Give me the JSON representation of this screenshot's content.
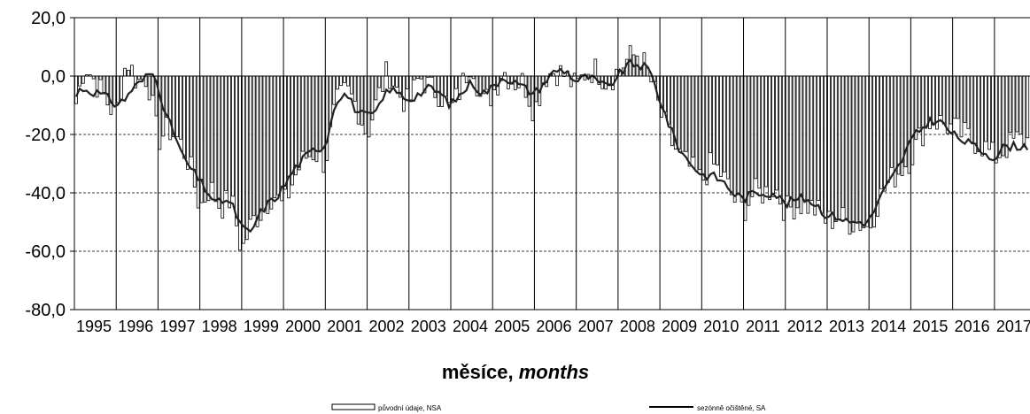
{
  "chart_data": {
    "type": "bar",
    "xlabel": "měsíce,",
    "xlabel_italic": "months",
    "ylim": [
      -80,
      20
    ],
    "yticks": [
      "20,0",
      "0,0",
      "-20,0",
      "-40,0",
      "-60,0",
      "-80,0"
    ],
    "ytick_values": [
      20,
      0,
      -20,
      -40,
      -60,
      -80
    ],
    "gridlines_dashed_at": [
      -20,
      -40,
      -60
    ],
    "years": [
      "1995",
      "1996",
      "1997",
      "1998",
      "1999",
      "2000",
      "2001",
      "2002",
      "2003",
      "2004",
      "2005",
      "2006",
      "2007",
      "2008",
      "2009",
      "2010",
      "2011",
      "2012",
      "2013",
      "2014",
      "2015",
      "2016",
      "2017"
    ],
    "legend_position": "bottom",
    "series": [
      {
        "name": "původní údaje, NSA",
        "kind": "bar",
        "anchors": [
          [
            1995.0,
            -12
          ],
          [
            1995.25,
            4
          ],
          [
            1995.5,
            -2
          ],
          [
            1995.75,
            -8
          ],
          [
            1996.0,
            -14
          ],
          [
            1996.25,
            6
          ],
          [
            1996.5,
            -2
          ],
          [
            1996.75,
            0
          ],
          [
            1997.0,
            -22
          ],
          [
            1997.25,
            -18
          ],
          [
            1997.5,
            -22
          ],
          [
            1997.75,
            -30
          ],
          [
            1998.0,
            -45
          ],
          [
            1998.25,
            -38
          ],
          [
            1998.5,
            -45
          ],
          [
            1998.75,
            -42
          ],
          [
            1999.0,
            -60
          ],
          [
            1999.25,
            -50
          ],
          [
            1999.5,
            -46
          ],
          [
            1999.75,
            -40
          ],
          [
            2000.0,
            -45
          ],
          [
            2000.25,
            -35
          ],
          [
            2000.5,
            -28
          ],
          [
            2000.75,
            -26
          ],
          [
            2001.0,
            -30
          ],
          [
            2001.25,
            -10
          ],
          [
            2001.5,
            -5
          ],
          [
            2001.75,
            -10
          ],
          [
            2002.0,
            -20
          ],
          [
            2002.25,
            -8
          ],
          [
            2002.5,
            2
          ],
          [
            2002.75,
            -6
          ],
          [
            2003.0,
            -10
          ],
          [
            2003.25,
            0
          ],
          [
            2003.5,
            -4
          ],
          [
            2003.75,
            -6
          ],
          [
            2004.0,
            -12
          ],
          [
            2004.25,
            -4
          ],
          [
            2004.5,
            6
          ],
          [
            2004.75,
            -10
          ],
          [
            2005.0,
            -6
          ],
          [
            2005.25,
            2
          ],
          [
            2005.5,
            -2
          ],
          [
            2005.75,
            -2
          ],
          [
            2006.0,
            -12
          ],
          [
            2006.25,
            0
          ],
          [
            2006.5,
            2
          ],
          [
            2006.75,
            0
          ],
          [
            2007.0,
            -4
          ],
          [
            2007.25,
            2
          ],
          [
            2007.5,
            2
          ],
          [
            2007.75,
            -2
          ],
          [
            2008.0,
            2
          ],
          [
            2008.25,
            6
          ],
          [
            2008.5,
            8
          ],
          [
            2008.75,
            0
          ],
          [
            2009.0,
            -12
          ],
          [
            2009.25,
            -22
          ],
          [
            2009.5,
            -28
          ],
          [
            2009.75,
            -32
          ],
          [
            2010.0,
            -36
          ],
          [
            2010.25,
            -30
          ],
          [
            2010.5,
            -34
          ],
          [
            2010.75,
            -42
          ],
          [
            2011.0,
            -46
          ],
          [
            2011.25,
            -40
          ],
          [
            2011.5,
            -40
          ],
          [
            2011.75,
            -38
          ],
          [
            2012.0,
            -46
          ],
          [
            2012.25,
            -44
          ],
          [
            2012.5,
            -44
          ],
          [
            2012.75,
            -46
          ],
          [
            2013.0,
            -50
          ],
          [
            2013.25,
            -48
          ],
          [
            2013.5,
            -50
          ],
          [
            2013.75,
            -50
          ],
          [
            2014.0,
            -52
          ],
          [
            2014.25,
            -42
          ],
          [
            2014.5,
            -36
          ],
          [
            2014.75,
            -32
          ],
          [
            2015.0,
            -28
          ],
          [
            2015.25,
            -20
          ],
          [
            2015.5,
            -15
          ],
          [
            2015.75,
            -16
          ],
          [
            2016.0,
            -18
          ],
          [
            2016.25,
            -20
          ],
          [
            2016.5,
            -22
          ],
          [
            2016.75,
            -24
          ],
          [
            2017.0,
            -28
          ],
          [
            2017.25,
            -25
          ],
          [
            2017.5,
            -22
          ]
        ]
      },
      {
        "name": "sezónně očištěné, SA",
        "kind": "line",
        "anchors": [
          [
            1995.0,
            -8
          ],
          [
            1995.15,
            -4
          ],
          [
            1995.35,
            -5
          ],
          [
            1995.6,
            -6
          ],
          [
            1995.85,
            -8
          ],
          [
            1996.0,
            -10
          ],
          [
            1996.2,
            -8
          ],
          [
            1996.4,
            -4
          ],
          [
            1996.6,
            -2
          ],
          [
            1996.8,
            1
          ],
          [
            1996.95,
            0
          ],
          [
            1997.05,
            -6
          ],
          [
            1997.2,
            -14
          ],
          [
            1997.4,
            -20
          ],
          [
            1997.6,
            -28
          ],
          [
            1997.8,
            -32
          ],
          [
            1998.0,
            -36
          ],
          [
            1998.2,
            -40
          ],
          [
            1998.4,
            -44
          ],
          [
            1998.6,
            -42
          ],
          [
            1998.8,
            -45
          ],
          [
            1999.0,
            -52
          ],
          [
            1999.2,
            -54
          ],
          [
            1999.4,
            -48
          ],
          [
            1999.6,
            -44
          ],
          [
            1999.8,
            -42
          ],
          [
            2000.0,
            -38
          ],
          [
            2000.25,
            -32
          ],
          [
            2000.5,
            -28
          ],
          [
            2000.75,
            -25
          ],
          [
            2001.0,
            -24
          ],
          [
            2001.25,
            -8
          ],
          [
            2001.5,
            -6
          ],
          [
            2001.75,
            -12
          ],
          [
            2002.0,
            -14
          ],
          [
            2002.25,
            -12
          ],
          [
            2002.5,
            -4
          ],
          [
            2002.75,
            -6
          ],
          [
            2003.0,
            -8
          ],
          [
            2003.25,
            -6
          ],
          [
            2003.5,
            -4
          ],
          [
            2003.75,
            -6
          ],
          [
            2004.0,
            -10
          ],
          [
            2004.25,
            -6
          ],
          [
            2004.5,
            -2
          ],
          [
            2004.75,
            -6
          ],
          [
            2005.0,
            -4
          ],
          [
            2005.25,
            0
          ],
          [
            2005.5,
            -2
          ],
          [
            2005.75,
            -4
          ],
          [
            2006.0,
            -6
          ],
          [
            2006.25,
            -2
          ],
          [
            2006.5,
            2
          ],
          [
            2006.75,
            2
          ],
          [
            2007.0,
            -2
          ],
          [
            2007.25,
            0
          ],
          [
            2007.5,
            -2
          ],
          [
            2007.75,
            -4
          ],
          [
            2008.0,
            0
          ],
          [
            2008.25,
            4
          ],
          [
            2008.5,
            4
          ],
          [
            2008.75,
            2
          ],
          [
            2009.0,
            -8
          ],
          [
            2009.25,
            -18
          ],
          [
            2009.5,
            -26
          ],
          [
            2009.75,
            -30
          ],
          [
            2010.0,
            -34
          ],
          [
            2010.25,
            -34
          ],
          [
            2010.5,
            -36
          ],
          [
            2010.75,
            -40
          ],
          [
            2011.0,
            -42
          ],
          [
            2011.25,
            -40
          ],
          [
            2011.5,
            -40
          ],
          [
            2011.75,
            -40
          ],
          [
            2012.0,
            -44
          ],
          [
            2012.25,
            -42
          ],
          [
            2012.5,
            -42
          ],
          [
            2012.75,
            -44
          ],
          [
            2013.0,
            -48
          ],
          [
            2013.25,
            -48
          ],
          [
            2013.5,
            -50
          ],
          [
            2013.75,
            -50
          ],
          [
            2014.0,
            -50
          ],
          [
            2014.25,
            -42
          ],
          [
            2014.5,
            -36
          ],
          [
            2014.75,
            -30
          ],
          [
            2015.0,
            -22
          ],
          [
            2015.25,
            -18
          ],
          [
            2015.5,
            -15
          ],
          [
            2015.75,
            -16
          ],
          [
            2016.0,
            -20
          ],
          [
            2016.25,
            -22
          ],
          [
            2016.5,
            -24
          ],
          [
            2016.75,
            -26
          ],
          [
            2017.0,
            -28
          ],
          [
            2017.25,
            -24
          ],
          [
            2017.5,
            -24
          ]
        ]
      }
    ]
  }
}
